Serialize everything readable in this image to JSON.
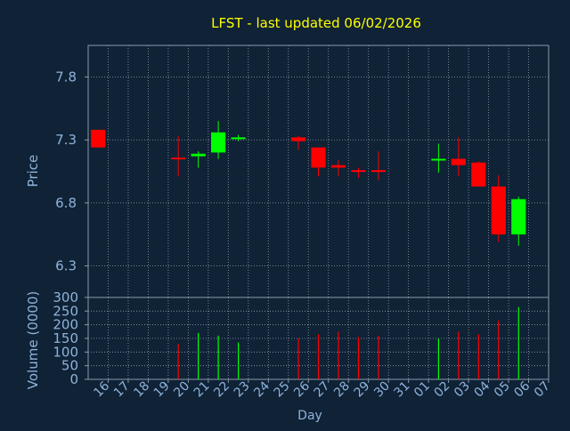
{
  "chart_data": [
    {
      "type": "candlestick",
      "title": "LFST - last updated 06/02/2026",
      "ylabel": "Price",
      "xlabel": "Day",
      "ylim": [
        6.05,
        8.05
      ],
      "yticks": [
        "6.3",
        "6.8",
        "7.3",
        "7.8"
      ],
      "grid": true,
      "x_ticks": [
        "16",
        "17",
        "18",
        "19",
        "20",
        "21",
        "22",
        "23",
        "24",
        "25",
        "26",
        "27",
        "28",
        "29",
        "30",
        "31",
        "01",
        "02",
        "03",
        "04",
        "05",
        "06",
        "07"
      ],
      "colors": {
        "up": "#00ff00",
        "down": "#ff0000",
        "title": "#ffff00",
        "axis_text": "#8fb3d9",
        "background": "#0f2236",
        "grid": "#c8d4e0"
      },
      "candles": [
        {
          "x": 0,
          "open": 7.38,
          "close": 7.24,
          "high": 7.38,
          "low": 7.24
        },
        {
          "x": 4,
          "open": 7.16,
          "close": 7.15,
          "high": 7.33,
          "low": 7.01
        },
        {
          "x": 5,
          "open": 7.17,
          "close": 7.19,
          "high": 7.21,
          "low": 7.08
        },
        {
          "x": 6,
          "open": 7.2,
          "close": 7.36,
          "high": 7.45,
          "low": 7.15
        },
        {
          "x": 7,
          "open": 7.31,
          "close": 7.32,
          "high": 7.34,
          "low": 7.29
        },
        {
          "x": 10,
          "open": 7.32,
          "close": 7.29,
          "high": 7.33,
          "low": 7.22
        },
        {
          "x": 11,
          "open": 7.24,
          "close": 7.08,
          "high": 7.24,
          "low": 7.01
        },
        {
          "x": 12,
          "open": 7.1,
          "close": 7.08,
          "high": 7.14,
          "low": 7.01
        },
        {
          "x": 13,
          "open": 7.06,
          "close": 7.05,
          "high": 7.08,
          "low": 7.0
        },
        {
          "x": 14,
          "open": 7.06,
          "close": 7.05,
          "high": 7.21,
          "low": 6.98
        },
        {
          "x": 17,
          "open": 7.14,
          "close": 7.15,
          "high": 7.27,
          "low": 7.04
        },
        {
          "x": 18,
          "open": 7.15,
          "close": 7.1,
          "high": 7.32,
          "low": 7.01
        },
        {
          "x": 19,
          "open": 7.12,
          "close": 6.93,
          "high": 7.13,
          "low": 6.93
        },
        {
          "x": 20,
          "open": 6.93,
          "close": 6.55,
          "high": 7.02,
          "low": 6.49
        },
        {
          "x": 21,
          "open": 6.55,
          "close": 6.83,
          "high": 6.85,
          "low": 6.46
        }
      ]
    },
    {
      "type": "bar",
      "ylabel": "Volume (0000)",
      "ylim": [
        0,
        300
      ],
      "yticks": [
        "0",
        "50",
        "100",
        "150",
        "200",
        "250",
        "300"
      ],
      "grid": true,
      "x_ticks": [
        "16",
        "17",
        "18",
        "19",
        "20",
        "21",
        "22",
        "23",
        "24",
        "25",
        "26",
        "27",
        "28",
        "29",
        "30",
        "31",
        "01",
        "02",
        "03",
        "04",
        "05",
        "06",
        "07"
      ],
      "bars": [
        {
          "x": 4,
          "value": 130,
          "dir": "down"
        },
        {
          "x": 5,
          "value": 170,
          "dir": "up"
        },
        {
          "x": 6,
          "value": 160,
          "dir": "up"
        },
        {
          "x": 7,
          "value": 135,
          "dir": "up"
        },
        {
          "x": 10,
          "value": 150,
          "dir": "down"
        },
        {
          "x": 11,
          "value": 165,
          "dir": "down"
        },
        {
          "x": 12,
          "value": 175,
          "dir": "down"
        },
        {
          "x": 13,
          "value": 155,
          "dir": "down"
        },
        {
          "x": 14,
          "value": 160,
          "dir": "down"
        },
        {
          "x": 17,
          "value": 150,
          "dir": "up"
        },
        {
          "x": 18,
          "value": 175,
          "dir": "down"
        },
        {
          "x": 19,
          "value": 165,
          "dir": "down"
        },
        {
          "x": 20,
          "value": 215,
          "dir": "down"
        },
        {
          "x": 21,
          "value": 265,
          "dir": "up"
        }
      ]
    }
  ]
}
